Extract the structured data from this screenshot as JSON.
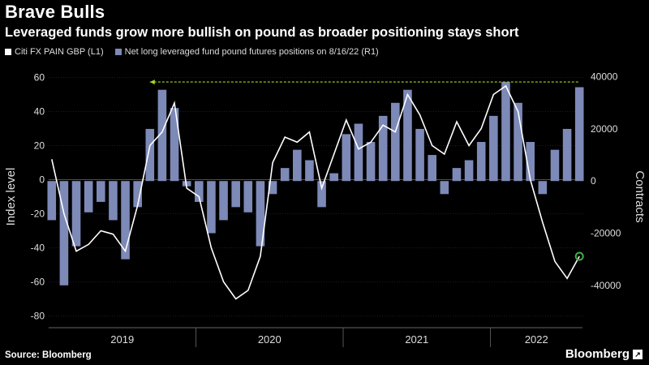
{
  "header": {
    "title": "Brave Bulls",
    "subtitle": "Leveraged funds grow more bullish on pound as broader positioning stays short"
  },
  "legend": {
    "line_label": "Citi FX PAIN GBP (L1)",
    "bars_label": "Net long leveraged fund pound futures positions on 8/16/22 (R1)"
  },
  "footer": {
    "source": "Source: Bloomberg",
    "brand": "Bloomberg"
  },
  "colors": {
    "line": "#ffffff",
    "bars": "#7d89b7",
    "reference_line": "#a3d62a",
    "marker": "#3cb043",
    "grid": "#3a3a3a"
  },
  "chart_data": {
    "type": "line",
    "ylabel_left": "Index level",
    "ylabel_right": "Contracts",
    "ylim_left": [
      -85,
      65
    ],
    "ylim_right": [
      -55000,
      43000
    ],
    "left_ticks": [
      "60",
      "40",
      "20",
      "0",
      "-20",
      "-40",
      "-60",
      "-80"
    ],
    "right_ticks": [
      "40000",
      "20000",
      "0",
      "-20000",
      "-40000"
    ],
    "x_labels": [
      "2019",
      "2020",
      "2021",
      "2022"
    ],
    "x_range": [
      "2019-01",
      "2022-08"
    ],
    "line_series": {
      "name": "Citi FX PAIN GBP (L1)",
      "x": [
        "2019-01",
        "2019-02",
        "2019-03",
        "2019-04",
        "2019-05",
        "2019-06",
        "2019-07",
        "2019-08",
        "2019-09",
        "2019-10",
        "2019-11",
        "2019-12",
        "2020-01",
        "2020-02",
        "2020-03",
        "2020-04",
        "2020-05",
        "2020-06",
        "2020-07",
        "2020-08",
        "2020-09",
        "2020-10",
        "2020-11",
        "2020-12",
        "2021-01",
        "2021-02",
        "2021-03",
        "2021-04",
        "2021-05",
        "2021-06",
        "2021-07",
        "2021-08",
        "2021-09",
        "2021-10",
        "2021-11",
        "2021-12",
        "2022-01",
        "2022-02",
        "2022-03",
        "2022-04",
        "2022-05",
        "2022-06",
        "2022-07",
        "2022-08"
      ],
      "y": [
        12,
        -20,
        -42,
        -38,
        -30,
        -32,
        -42,
        -15,
        20,
        28,
        45,
        -5,
        -10,
        -40,
        -60,
        -70,
        -65,
        -45,
        10,
        25,
        22,
        28,
        -5,
        15,
        35,
        18,
        22,
        32,
        28,
        50,
        38,
        20,
        15,
        34,
        20,
        30,
        50,
        55,
        40,
        0,
        -25,
        -48,
        -58,
        -45
      ]
    },
    "bar_series": {
      "name": "Net long leveraged fund pound futures positions on 8/16/22 (R1)",
      "x": [
        "2019-01",
        "2019-02",
        "2019-03",
        "2019-04",
        "2019-05",
        "2019-06",
        "2019-07",
        "2019-08",
        "2019-09",
        "2019-10",
        "2019-11",
        "2019-12",
        "2020-01",
        "2020-02",
        "2020-03",
        "2020-04",
        "2020-05",
        "2020-06",
        "2020-07",
        "2020-08",
        "2020-09",
        "2020-10",
        "2020-11",
        "2020-12",
        "2021-01",
        "2021-02",
        "2021-03",
        "2021-04",
        "2021-05",
        "2021-06",
        "2021-07",
        "2021-08",
        "2021-09",
        "2021-10",
        "2021-11",
        "2021-12",
        "2022-01",
        "2022-02",
        "2022-03",
        "2022-04",
        "2022-05",
        "2022-06",
        "2022-07",
        "2022-08"
      ],
      "values": [
        -15000,
        -40000,
        -25000,
        -12000,
        -8000,
        -15000,
        -30000,
        -10000,
        20000,
        35000,
        28000,
        -2000,
        -8000,
        -20000,
        -15000,
        -10000,
        -12000,
        -25000,
        -5000,
        5000,
        12000,
        8000,
        -10000,
        3000,
        18000,
        22000,
        15000,
        25000,
        30000,
        35000,
        20000,
        10000,
        -5000,
        5000,
        8000,
        15000,
        25000,
        38000,
        30000,
        15000,
        -5000,
        12000,
        20000,
        36000
      ]
    },
    "reference_line_level": 38000,
    "last_value_marker": -45
  }
}
